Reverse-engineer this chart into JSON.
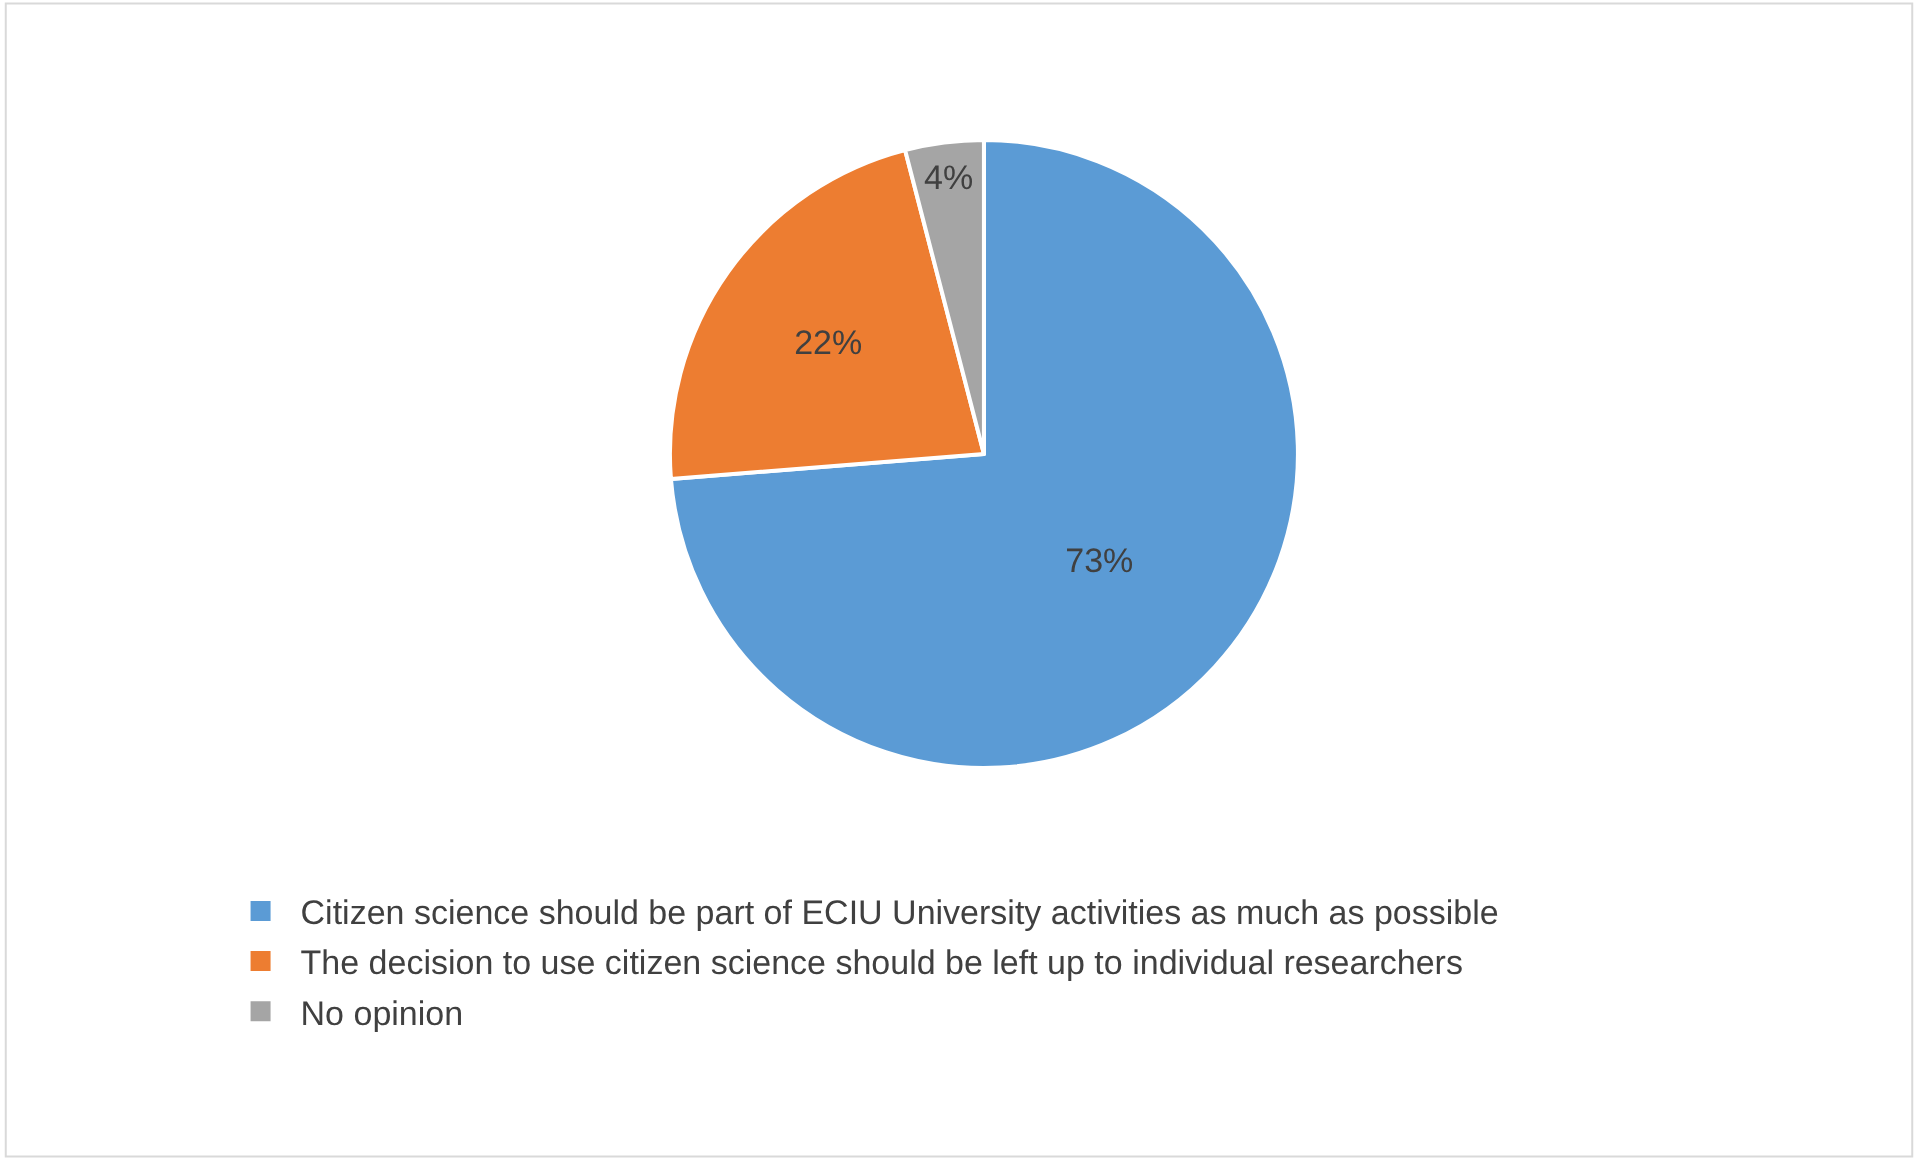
{
  "chart_data": {
    "type": "pie",
    "categories": [
      "Citizen science should be part of ECIU University activities as much as possible",
      "The decision to use citizen science should be left up to individual researchers",
      "No opinion"
    ],
    "values": [
      73,
      22,
      4
    ],
    "colors": [
      "#5b9bd5",
      "#ed7d31",
      "#a5a5a5"
    ],
    "value_labels": [
      "73%",
      "22%",
      "4%"
    ],
    "legend": "bottom"
  }
}
